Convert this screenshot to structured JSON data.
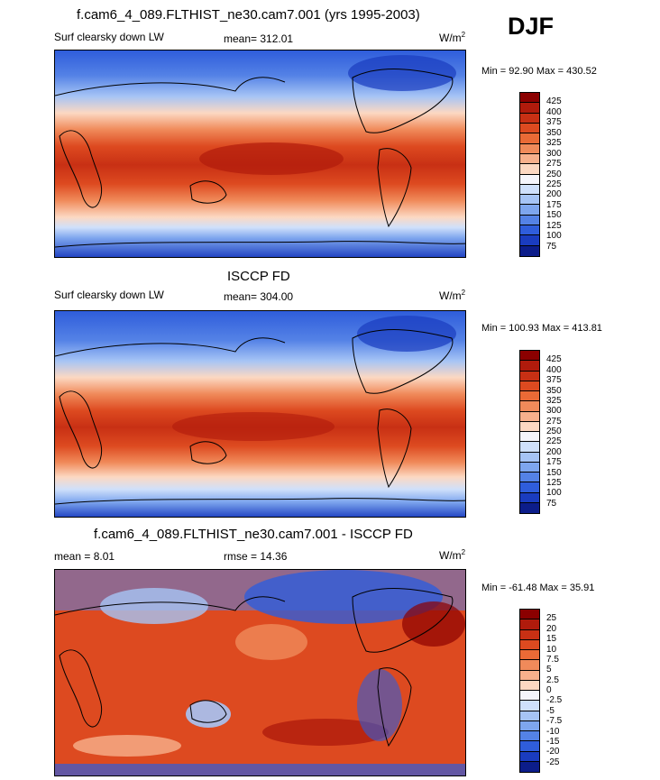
{
  "season": "DJF",
  "panels": [
    {
      "title": "f.cam6_4_089.FLTHIST_ne30.cam7.001 (yrs 1995-2003)",
      "left_label": "Surf clearsky down LW",
      "stat_label": "mean= 312.01",
      "units": "W/m",
      "units_sup": "2",
      "minmax": "Min =  92.90 Max = 430.52",
      "colorbar_labels": [
        "425",
        "400",
        "375",
        "350",
        "325",
        "300",
        "275",
        "250",
        "225",
        "200",
        "175",
        "150",
        "125",
        "100",
        "75"
      ]
    },
    {
      "title": "ISCCP FD",
      "left_label": "Surf clearsky down LW",
      "stat_label": "mean= 304.00",
      "units": "W/m",
      "units_sup": "2",
      "minmax": "Min = 100.93 Max = 413.81",
      "colorbar_labels": [
        "425",
        "400",
        "375",
        "350",
        "325",
        "300",
        "275",
        "250",
        "225",
        "200",
        "175",
        "150",
        "125",
        "100",
        "75"
      ]
    },
    {
      "title": "f.cam6_4_089.FLTHIST_ne30.cam7.001 - ISCCP FD",
      "left_label": "mean =   8.01",
      "stat_label": "rmse =  14.36",
      "units": "W/m",
      "units_sup": "2",
      "minmax": "Min = -61.48 Max =  35.91",
      "colorbar_labels": [
        "25",
        "20",
        "15",
        "10",
        "7.5",
        "5",
        "2.5",
        "0",
        "-2.5",
        "-5",
        "-7.5",
        "-10",
        "-15",
        "-20",
        "-25"
      ]
    }
  ],
  "colormap": {
    "abs_colors": [
      "#8b0000",
      "#b01b0c",
      "#c83014",
      "#dd4a20",
      "#ea6a36",
      "#f08a5a",
      "#f7b08c",
      "#fcd8c2",
      "#f5f5fb",
      "#cfe0fb",
      "#a6c4f5",
      "#7ea6ee",
      "#5482e6",
      "#2f5ddb",
      "#1a3cbf",
      "#0c1d8a"
    ],
    "diff_colors": [
      "#8b0000",
      "#b01b0c",
      "#c83014",
      "#dd4a20",
      "#ea6a36",
      "#f08a5a",
      "#f7b08c",
      "#fcd8c2",
      "#f5f5fb",
      "#cfe0fb",
      "#a6c4f5",
      "#7ea6ee",
      "#5482e6",
      "#2f5ddb",
      "#1a3cbf",
      "#0c1d8a"
    ]
  }
}
